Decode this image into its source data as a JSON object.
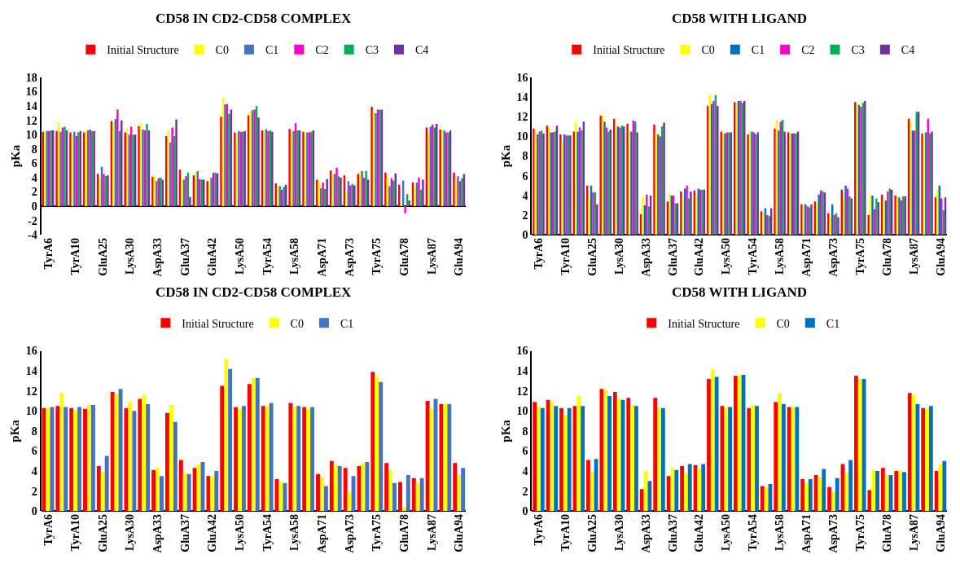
{
  "chart_data": [
    {
      "type": "bar",
      "title": "CD58 IN CD2-CD58 COMPLEX",
      "ylabel": "pKa",
      "legend": "top",
      "ylim": [
        -4,
        18
      ],
      "yticks": [
        -4,
        -2,
        0,
        2,
        4,
        6,
        8,
        10,
        12,
        14,
        16,
        18
      ],
      "categories": [
        "TyrA6",
        null,
        "TyrA10",
        null,
        "GluA25",
        null,
        "LysA30",
        null,
        "AspA33",
        null,
        "GluA37",
        null,
        "GluA42",
        null,
        "LysA50",
        null,
        "TyrA54",
        null,
        "LysA58",
        null,
        "AspA71",
        null,
        "AspA73",
        null,
        "TyrA75",
        null,
        "GluA78",
        null,
        "LysA87",
        null,
        "GluA94"
      ],
      "series": [
        {
          "name": "Initial Structure",
          "color": "#ff0000",
          "values": [
            10.4,
            10.5,
            10.3,
            10.3,
            4.5,
            11.9,
            10.3,
            11.2,
            4.1,
            9.8,
            5.1,
            4.3,
            3.5,
            12.5,
            10.3,
            12.7,
            10.6,
            3.2,
            10.8,
            10.4,
            3.7,
            5.0,
            4.3,
            4.5,
            13.9,
            4.7,
            3.0,
            3.3,
            11.0,
            10.7,
            4.7
          ]
        },
        {
          "name": "C0",
          "color": "#ffff00",
          "values": [
            10.4,
            11.8,
            10.0,
            10.6,
            3.9,
            11.7,
            10.9,
            11.6,
            4.3,
            10.6,
            3.8,
            4.7,
            3.5,
            15.2,
            10.2,
            13.3,
            10.6,
            2.8,
            10.3,
            10.3,
            3.3,
            4.6,
            1.9,
            4.8,
            13.3,
            4.0,
            0.4,
            2.8,
            10.2,
            10.7,
            3.6
          ]
        },
        {
          "name": "C1",
          "color": "#4472c4",
          "values": [
            10.5,
            10.4,
            10.4,
            10.6,
            5.5,
            12.2,
            10.0,
            10.7,
            3.5,
            8.9,
            3.7,
            4.9,
            4.0,
            14.2,
            10.5,
            13.4,
            10.8,
            2.8,
            10.5,
            10.3,
            2.5,
            4.5,
            3.5,
            4.9,
            13.0,
            2.8,
            3.6,
            3.3,
            11.1,
            10.6,
            4.2
          ]
        },
        {
          "name": "C2",
          "color": "#ff00cc",
          "values": [
            10.5,
            11.0,
            9.8,
            10.7,
            4.5,
            13.5,
            11.1,
            10.6,
            3.9,
            11.0,
            4.2,
            3.8,
            4.7,
            14.3,
            10.4,
            13.5,
            10.5,
            2.3,
            11.6,
            10.3,
            3.3,
            5.4,
            2.9,
            4.0,
            13.5,
            3.9,
            -1.0,
            4.0,
            11.4,
            10.3,
            3.5
          ]
        },
        {
          "name": "C3",
          "color": "#00b050",
          "values": [
            10.6,
            11.1,
            10.3,
            10.5,
            4.2,
            10.5,
            10.0,
            11.5,
            4.0,
            9.8,
            4.7,
            3.7,
            4.7,
            12.9,
            10.4,
            14.0,
            10.6,
            2.7,
            10.6,
            10.4,
            2.4,
            4.2,
            3.1,
            4.9,
            13.5,
            3.6,
            1.7,
            2.3,
            11.0,
            10.3,
            3.9
          ]
        },
        {
          "name": "C4",
          "color": "#7030a0",
          "values": [
            10.6,
            10.6,
            10.5,
            10.5,
            4.3,
            12.0,
            10.0,
            10.6,
            3.7,
            12.1,
            1.3,
            3.7,
            4.6,
            13.5,
            10.5,
            12.4,
            10.4,
            3.0,
            10.6,
            10.6,
            3.8,
            4.0,
            2.9,
            3.7,
            13.5,
            4.6,
            0.8,
            3.7,
            11.5,
            10.6,
            4.5
          ]
        }
      ]
    },
    {
      "type": "bar",
      "title": "CD58 WITH LIGAND",
      "ylabel": "pKa",
      "legend": "top",
      "ylim": [
        0,
        16
      ],
      "yticks": [
        0,
        2,
        4,
        6,
        8,
        10,
        12,
        14,
        16
      ],
      "categories": [
        "TyrA6",
        null,
        "TyrA10",
        null,
        "GluA25",
        null,
        "LysA30",
        null,
        "AspA33",
        null,
        "GluA37",
        null,
        "GluA42",
        null,
        "LysA50",
        null,
        "TyrA54",
        null,
        "LysA58",
        null,
        "AspA71",
        null,
        "AspA73",
        null,
        "TyrA75",
        null,
        "GluA78",
        null,
        "LysA87",
        null,
        "GluA94"
      ],
      "series": [
        {
          "name": "Initial Structure",
          "color": "#ff0000",
          "values": [
            10.8,
            11.1,
            10.2,
            10.5,
            5.0,
            12.1,
            11.8,
            11.3,
            2.1,
            11.2,
            3.4,
            4.4,
            4.5,
            13.1,
            10.5,
            13.5,
            10.2,
            2.4,
            10.8,
            10.4,
            3.1,
            3.4,
            2.2,
            4.6,
            13.5,
            2.0,
            4.1,
            4.0,
            11.8,
            10.3,
            3.8
          ]
        },
        {
          "name": "C0",
          "color": "#ffff00",
          "values": [
            10.5,
            10.9,
            9.6,
            11.5,
            3.8,
            12.1,
            11.2,
            10.5,
            3.9,
            10.3,
            4.2,
            3.7,
            4.0,
            14.2,
            10.3,
            13.5,
            10.4,
            2.2,
            11.7,
            10.3,
            3.1,
            3.3,
            1.8,
            3.7,
            13.4,
            4.0,
            3.5,
            3.9,
            11.5,
            10.2,
            4.6
          ]
        },
        {
          "name": "C1",
          "color": "#0070c0",
          "values": [
            10.2,
            10.4,
            10.2,
            10.5,
            5.0,
            11.5,
            11.0,
            10.5,
            3.0,
            10.2,
            4.0,
            4.7,
            4.7,
            13.3,
            10.3,
            13.6,
            10.5,
            2.7,
            10.6,
            10.3,
            3.1,
            4.1,
            3.1,
            5.0,
            13.2,
            4.0,
            3.5,
            3.8,
            10.6,
            10.4,
            5.0
          ]
        },
        {
          "name": "C2",
          "color": "#ff00cc",
          "values": [
            10.5,
            10.4,
            10.1,
            10.9,
            4.3,
            10.9,
            10.9,
            11.6,
            4.1,
            10.0,
            4.0,
            5.0,
            4.6,
            13.6,
            10.4,
            13.6,
            10.4,
            2.0,
            11.5,
            10.3,
            2.9,
            4.5,
            2.0,
            4.7,
            13.0,
            2.6,
            4.4,
            3.5,
            10.6,
            11.8,
            3.7
          ]
        },
        {
          "name": "C3",
          "color": "#00b050",
          "values": [
            10.6,
            10.5,
            10.1,
            10.6,
            4.3,
            10.5,
            11.1,
            11.5,
            2.9,
            11.0,
            3.2,
            3.7,
            4.6,
            14.2,
            10.4,
            13.4,
            10.2,
            1.9,
            11.7,
            10.3,
            2.8,
            4.4,
            2.2,
            3.9,
            13.4,
            3.7,
            4.7,
            3.9,
            12.5,
            10.3,
            2.5
          ]
        },
        {
          "name": "C4",
          "color": "#7030a0",
          "values": [
            10.3,
            11.1,
            10.1,
            11.5,
            3.1,
            10.7,
            11.0,
            10.4,
            4.0,
            11.4,
            3.2,
            4.4,
            4.6,
            13.1,
            10.4,
            13.6,
            10.4,
            2.7,
            10.5,
            10.5,
            3.1,
            4.3,
            1.8,
            3.7,
            13.6,
            3.3,
            4.6,
            3.9,
            12.5,
            10.5,
            3.8
          ]
        }
      ]
    },
    {
      "type": "bar",
      "title": "CD58 IN CD2-CD58 COMPLEX",
      "ylabel": "pKa",
      "legend": "top",
      "ylim": [
        0,
        16
      ],
      "yticks": [
        0,
        2,
        4,
        6,
        8,
        10,
        12,
        14,
        16
      ],
      "categories": [
        "TyrA6",
        null,
        "TyrA10",
        null,
        "GluA25",
        null,
        "LysA30",
        null,
        "AspA33",
        null,
        "GluA37",
        null,
        "GluA42",
        null,
        "LysA50",
        null,
        "TyrA54",
        null,
        "LysA58",
        null,
        "AspA71",
        null,
        "AspA73",
        null,
        "TyrA75",
        null,
        "GluA78",
        null,
        "LysA87",
        null,
        "GluA94"
      ],
      "series": [
        {
          "name": "Initial Structure",
          "color": "#ff0000",
          "values": [
            10.3,
            10.5,
            10.3,
            10.2,
            4.5,
            11.9,
            10.3,
            11.2,
            4.1,
            9.8,
            5.1,
            4.3,
            3.5,
            12.5,
            10.4,
            12.7,
            10.5,
            3.2,
            10.8,
            10.4,
            3.7,
            5.0,
            4.3,
            4.5,
            13.9,
            4.8,
            2.9,
            3.3,
            11.0,
            10.7,
            4.8
          ]
        },
        {
          "name": "C0",
          "color": "#ffff00",
          "values": [
            10.3,
            11.8,
            10.0,
            10.6,
            3.9,
            11.7,
            10.9,
            11.6,
            4.3,
            10.6,
            3.8,
            4.7,
            3.5,
            15.2,
            10.2,
            13.3,
            10.5,
            2.9,
            10.4,
            10.2,
            3.4,
            4.6,
            1.9,
            4.8,
            13.4,
            4.0,
            0.4,
            2.8,
            10.2,
            10.7,
            3.6
          ]
        },
        {
          "name": "C1",
          "color": "#4472c4",
          "values": [
            10.4,
            10.4,
            10.4,
            10.6,
            5.5,
            12.2,
            10.0,
            10.7,
            3.5,
            8.9,
            3.7,
            4.9,
            4.0,
            14.2,
            10.5,
            13.3,
            10.8,
            2.8,
            10.5,
            10.4,
            2.5,
            4.5,
            3.5,
            4.9,
            12.9,
            2.8,
            3.6,
            3.3,
            11.2,
            10.7,
            4.3
          ]
        }
      ]
    },
    {
      "type": "bar",
      "title": "CD58 WITH LIGAND",
      "ylabel": "pKa",
      "legend": "top",
      "ylim": [
        0,
        16
      ],
      "yticks": [
        0,
        2,
        4,
        6,
        8,
        10,
        12,
        14,
        16
      ],
      "categories": [
        "TyrA6",
        null,
        "TyrA10",
        null,
        "GluA25",
        null,
        "LysA30",
        null,
        "AspA33",
        null,
        "GluA37",
        null,
        "GluA42",
        null,
        "LysA50",
        null,
        "TyrA54",
        null,
        "LysA58",
        null,
        "AspA71",
        null,
        "AspA73",
        null,
        "TyrA75",
        null,
        "GluA78",
        null,
        "LysA87",
        null,
        "GluA94"
      ],
      "series": [
        {
          "name": "Initial Structure",
          "color": "#ff0000",
          "values": [
            10.9,
            11.1,
            10.3,
            10.5,
            5.1,
            12.2,
            11.9,
            11.3,
            2.2,
            11.3,
            3.5,
            4.5,
            4.6,
            13.2,
            10.5,
            13.5,
            10.3,
            2.5,
            10.9,
            10.4,
            3.2,
            3.6,
            2.4,
            4.7,
            13.5,
            2.1,
            4.3,
            4.0,
            11.8,
            10.3,
            4.0
          ]
        },
        {
          "name": "C0",
          "color": "#ffff00",
          "values": [
            10.5,
            10.9,
            9.6,
            11.5,
            3.9,
            12.1,
            11.2,
            10.6,
            4.0,
            10.3,
            4.3,
            3.8,
            4.2,
            14.2,
            10.4,
            13.5,
            10.6,
            2.4,
            11.8,
            10.4,
            2.8,
            3.4,
            1.9,
            3.8,
            13.2,
            4.1,
            3.6,
            4.0,
            11.6,
            10.2,
            4.7
          ]
        },
        {
          "name": "C1",
          "color": "#0070c0",
          "values": [
            10.3,
            10.5,
            10.3,
            10.5,
            5.2,
            11.5,
            11.1,
            10.5,
            3.0,
            10.3,
            4.1,
            4.7,
            4.7,
            13.4,
            10.4,
            13.6,
            10.5,
            2.7,
            10.7,
            10.4,
            3.2,
            4.2,
            3.3,
            5.1,
            13.2,
            4.0,
            3.6,
            3.9,
            10.7,
            10.5,
            5.0
          ]
        }
      ]
    }
  ]
}
